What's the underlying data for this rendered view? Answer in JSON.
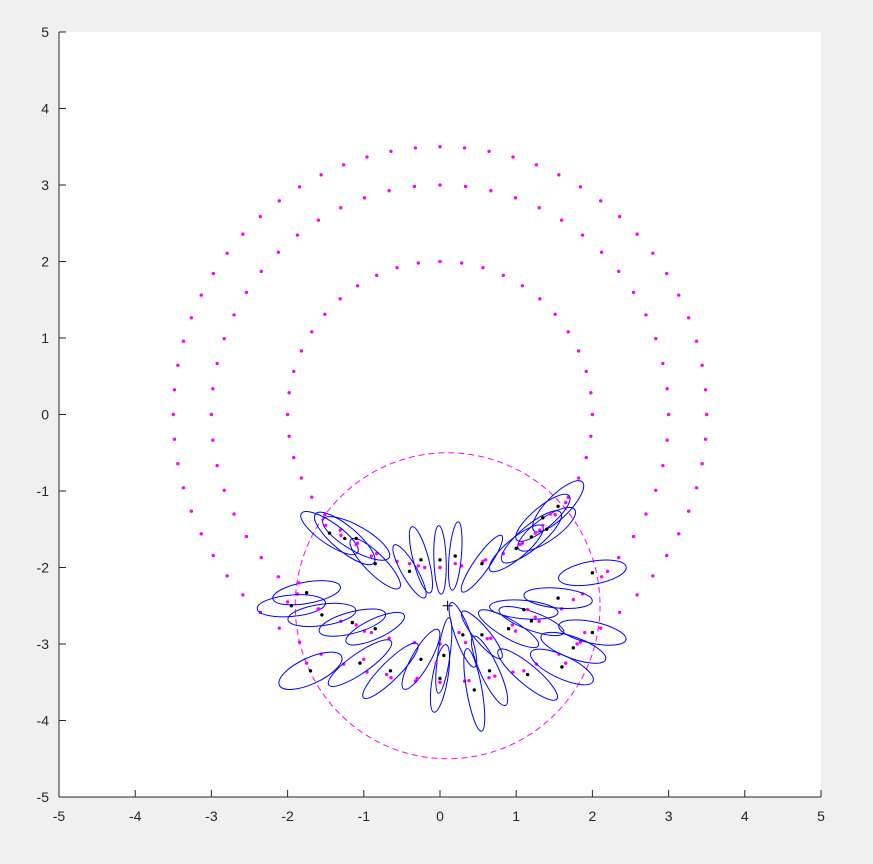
{
  "window": {
    "background": "#f0f0f0"
  },
  "chart_data": {
    "type": "scatter",
    "title": "",
    "xlabel": "",
    "ylabel": "",
    "xlim": [
      -5,
      5
    ],
    "ylim": [
      -5,
      5
    ],
    "xticks": [
      -5,
      -4,
      -3,
      -2,
      -1,
      0,
      1,
      2,
      3,
      4,
      5
    ],
    "yticks": [
      -5,
      -4,
      -3,
      -2,
      -1,
      0,
      1,
      2,
      3,
      4,
      5
    ],
    "xtick_labels": [
      "-5",
      "-4",
      "-3",
      "-2",
      "-1",
      "0",
      "1",
      "2",
      "3",
      "4",
      "5"
    ],
    "ytick_labels": [
      "-5",
      "-4",
      "-3",
      "-2",
      "-1",
      "0",
      "1",
      "2",
      "3",
      "4",
      "5"
    ],
    "grid": false,
    "legend": "none",
    "colors": {
      "landmarks": "#ff00ff",
      "circle": "#ff00ff",
      "ellipses": "#0000ff",
      "estimates": "#000000",
      "axes": "#262626",
      "plot_background": "#ffffff"
    },
    "landmark_rings": [
      {
        "center": [
          0,
          0
        ],
        "radius": 2.0,
        "count": 44
      },
      {
        "center": [
          0,
          0
        ],
        "radius": 3.0,
        "count": 56
      },
      {
        "center": [
          0,
          0
        ],
        "radius": 3.5,
        "count": 68
      }
    ],
    "dashed_circle": {
      "center": [
        0.1,
        -2.5
      ],
      "radius": 2.0
    },
    "robot_marker": [
      0.1,
      -2.5
    ],
    "observations": [
      {
        "est": [
          -1.75,
          -2.33
        ],
        "truth": [
          -1.85,
          -2.2
        ],
        "rx": 0.45,
        "ry": 0.14,
        "angle": 10
      },
      {
        "est": [
          -1.95,
          -2.5
        ],
        "truth": [
          -2.0,
          -2.45
        ],
        "rx": 0.45,
        "ry": 0.14,
        "angle": 5
      },
      {
        "est": [
          -1.55,
          -2.62
        ],
        "truth": [
          -1.6,
          -2.55
        ],
        "rx": 0.45,
        "ry": 0.14,
        "angle": 8
      },
      {
        "est": [
          -1.15,
          -2.72
        ],
        "truth": [
          -1.1,
          -2.75
        ],
        "rx": 0.45,
        "ry": 0.14,
        "angle": 15
      },
      {
        "est": [
          -0.85,
          -2.8
        ],
        "truth": [
          -0.9,
          -2.85
        ],
        "rx": 0.42,
        "ry": 0.13,
        "angle": 25
      },
      {
        "est": [
          -1.7,
          -3.35
        ],
        "truth": [
          -1.75,
          -3.25
        ],
        "rx": 0.45,
        "ry": 0.17,
        "angle": 25
      },
      {
        "est": [
          -1.05,
          -3.25
        ],
        "truth": [
          -1.0,
          -3.2
        ],
        "rx": 0.5,
        "ry": 0.13,
        "angle": 35
      },
      {
        "est": [
          -0.65,
          -3.35
        ],
        "truth": [
          -0.7,
          -3.4
        ],
        "rx": 0.5,
        "ry": 0.12,
        "angle": 45
      },
      {
        "est": [
          -0.25,
          -3.2
        ],
        "truth": [
          -0.3,
          -3.45
        ],
        "rx": 0.45,
        "ry": 0.12,
        "angle": 60
      },
      {
        "est": [
          0.0,
          -3.45
        ],
        "truth": [
          0.0,
          -3.5
        ],
        "rx": 0.45,
        "ry": 0.1,
        "angle": 80
      },
      {
        "est": [
          0.05,
          -3.15
        ],
        "truth": [
          -0.05,
          -3.25
        ],
        "rx": 0.5,
        "ry": 0.08,
        "angle": 82
      },
      {
        "est": [
          0.45,
          -3.6
        ],
        "truth": [
          0.38,
          -3.48
        ],
        "rx": 0.55,
        "ry": 0.1,
        "angle": 100
      },
      {
        "est": [
          0.65,
          -3.35
        ],
        "truth": [
          0.72,
          -3.42
        ],
        "rx": 0.5,
        "ry": 0.12,
        "angle": 115
      },
      {
        "est": [
          0.3,
          -2.88
        ],
        "truth": [
          0.25,
          -2.85
        ],
        "rx": 0.45,
        "ry": 0.1,
        "angle": 110
      },
      {
        "est": [
          0.55,
          -2.88
        ],
        "truth": [
          0.62,
          -2.93
        ],
        "rx": 0.4,
        "ry": 0.1,
        "angle": 130
      },
      {
        "est": [
          1.15,
          -3.4
        ],
        "truth": [
          1.1,
          -3.35
        ],
        "rx": 0.5,
        "ry": 0.13,
        "angle": 140
      },
      {
        "est": [
          1.6,
          -3.3
        ],
        "truth": [
          1.65,
          -3.25
        ],
        "rx": 0.45,
        "ry": 0.15,
        "angle": 155
      },
      {
        "est": [
          1.75,
          -3.05
        ],
        "truth": [
          1.8,
          -3.0
        ],
        "rx": 0.45,
        "ry": 0.14,
        "angle": 160
      },
      {
        "est": [
          2.0,
          -2.85
        ],
        "truth": [
          1.9,
          -2.85
        ],
        "rx": 0.45,
        "ry": 0.14,
        "angle": 168
      },
      {
        "est": [
          0.9,
          -2.8
        ],
        "truth": [
          0.95,
          -2.75
        ],
        "rx": 0.45,
        "ry": 0.12,
        "angle": 150
      },
      {
        "est": [
          1.2,
          -2.7
        ],
        "truth": [
          1.25,
          -2.65
        ],
        "rx": 0.45,
        "ry": 0.12,
        "angle": 160
      },
      {
        "est": [
          1.1,
          -2.55
        ],
        "truth": [
          1.15,
          -2.55
        ],
        "rx": 0.45,
        "ry": 0.12,
        "angle": 175
      },
      {
        "est": [
          1.55,
          -2.4
        ],
        "truth": [
          1.75,
          -2.42
        ],
        "rx": 0.45,
        "ry": 0.13,
        "angle": 175
      },
      {
        "est": [
          2.0,
          -2.07
        ],
        "truth": [
          2.2,
          -2.05
        ],
        "rx": 0.45,
        "ry": 0.15,
        "angle": 10
      },
      {
        "est": [
          -1.25,
          -1.62
        ],
        "truth": [
          -1.3,
          -1.58
        ],
        "rx": 0.5,
        "ry": 0.16,
        "angle": -40
      },
      {
        "est": [
          -1.45,
          -1.55
        ],
        "truth": [
          -1.5,
          -1.45
        ],
        "rx": 0.45,
        "ry": 0.14,
        "angle": -35
      },
      {
        "est": [
          -1.1,
          -1.62
        ],
        "truth": [
          -1.1,
          -1.7
        ],
        "rx": 0.5,
        "ry": 0.16,
        "angle": -30
      },
      {
        "est": [
          -0.85,
          -1.95
        ],
        "truth": [
          -0.9,
          -1.85
        ],
        "rx": 0.45,
        "ry": 0.13,
        "angle": -45
      },
      {
        "est": [
          -0.4,
          -2.05
        ],
        "truth": [
          -0.4,
          -1.95
        ],
        "rx": 0.4,
        "ry": 0.1,
        "angle": -60
      },
      {
        "est": [
          -0.25,
          -1.9
        ],
        "truth": [
          -0.2,
          -2.0
        ],
        "rx": 0.45,
        "ry": 0.1,
        "angle": -75
      },
      {
        "est": [
          0.0,
          -1.9
        ],
        "truth": [
          0.0,
          -2.0
        ],
        "rx": 0.45,
        "ry": 0.08,
        "angle": -88
      },
      {
        "est": [
          0.2,
          -1.85
        ],
        "truth": [
          0.2,
          -1.95
        ],
        "rx": 0.45,
        "ry": 0.08,
        "angle": -95
      },
      {
        "est": [
          0.55,
          -1.95
        ],
        "truth": [
          0.6,
          -1.9
        ],
        "rx": 0.45,
        "ry": 0.1,
        "angle": -125
      },
      {
        "est": [
          1.0,
          -1.75
        ],
        "truth": [
          1.05,
          -1.7
        ],
        "rx": 0.45,
        "ry": 0.13,
        "angle": -140
      },
      {
        "est": [
          1.2,
          -1.6
        ],
        "truth": [
          1.25,
          -1.55
        ],
        "rx": 0.5,
        "ry": 0.15,
        "angle": -140
      },
      {
        "est": [
          1.4,
          -1.5
        ],
        "truth": [
          1.35,
          -1.45
        ],
        "rx": 0.45,
        "ry": 0.15,
        "angle": -145
      },
      {
        "est": [
          1.55,
          -1.2
        ],
        "truth": [
          1.65,
          -1.15
        ],
        "rx": 0.45,
        "ry": 0.15,
        "angle": -135
      },
      {
        "est": [
          1.35,
          -1.35
        ],
        "truth": [
          1.45,
          -1.3
        ],
        "rx": 0.45,
        "ry": 0.14,
        "angle": -140
      }
    ]
  }
}
